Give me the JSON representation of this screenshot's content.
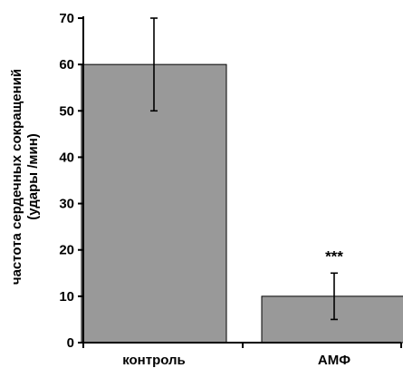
{
  "chart_data": {
    "type": "bar",
    "categories": [
      "контроль",
      "АМФ"
    ],
    "values": [
      60,
      10
    ],
    "errors": [
      10,
      5
    ],
    "annotations": [
      "",
      "***"
    ],
    "ylabel_line1": "частота сердечных сокращений",
    "ylabel_line2": "(удары /мин)",
    "ylim": [
      0,
      70
    ],
    "yticks": [
      0,
      10,
      20,
      30,
      40,
      50,
      60,
      70
    ],
    "bar_color": "#999999",
    "grid": false
  }
}
